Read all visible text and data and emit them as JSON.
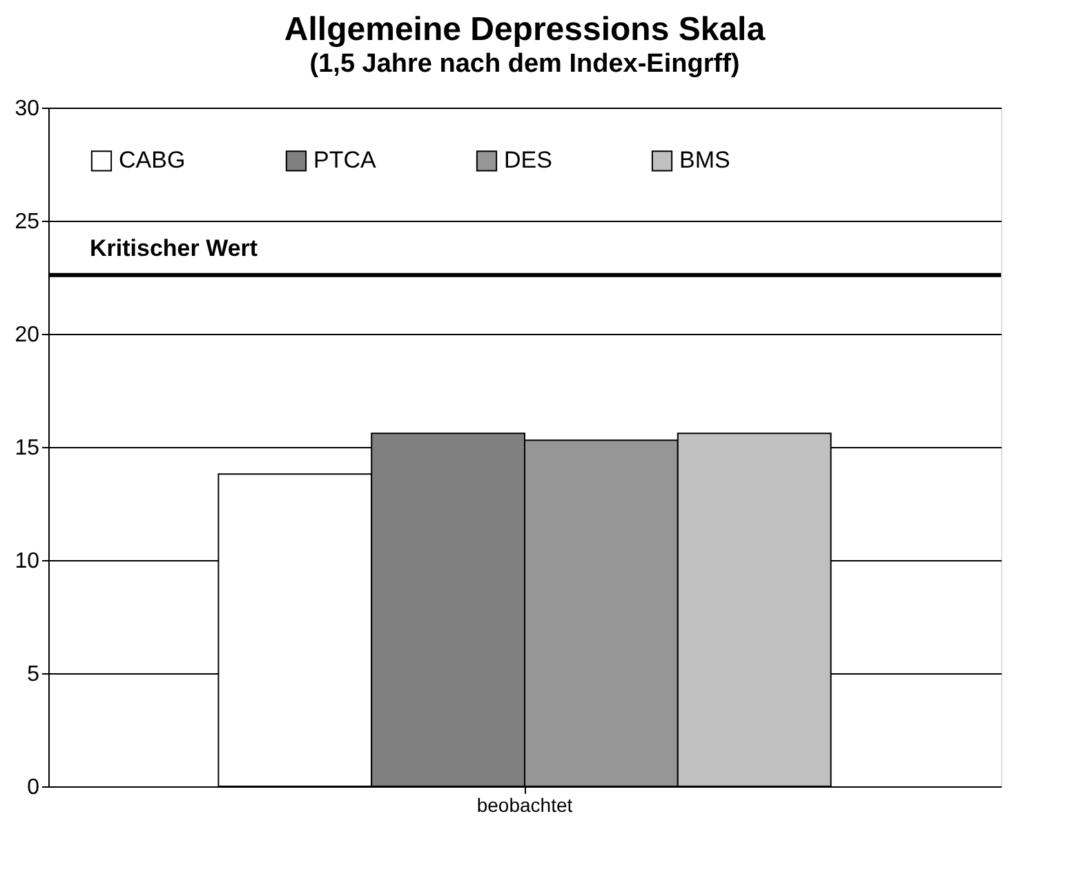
{
  "chart_data": {
    "type": "bar",
    "title": "Allgemeine Depressions Skala",
    "subtitle": "(1,5 Jahre nach dem Index-Eingrff)",
    "categories": [
      "beobachtet"
    ],
    "series": [
      {
        "name": "CABG",
        "color": "#ffffff",
        "values": [
          13.8
        ]
      },
      {
        "name": "PTCA",
        "color": "#808080",
        "values": [
          15.6
        ]
      },
      {
        "name": "DES",
        "color": "#969696",
        "values": [
          15.3
        ]
      },
      {
        "name": "BMS",
        "color": "#c0c0c0",
        "values": [
          15.6
        ]
      }
    ],
    "ylim": [
      0,
      30
    ],
    "yticks": [
      0,
      5,
      10,
      15,
      20,
      25,
      30
    ],
    "grid": "y",
    "legend": "top left",
    "ref_lines": [
      {
        "axis": "y",
        "value": 22.6,
        "label": "Kritischer Wert",
        "color": "#000000"
      }
    ]
  }
}
